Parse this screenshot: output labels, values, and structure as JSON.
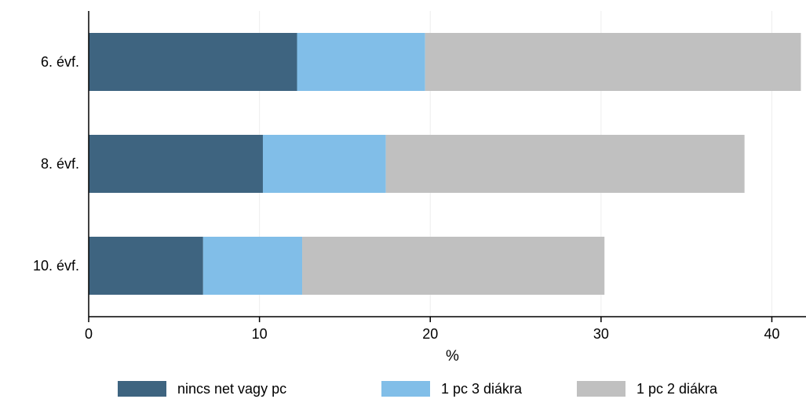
{
  "chart_data": {
    "type": "bar",
    "orientation": "horizontal",
    "stacked": true,
    "title": "",
    "xlabel": "%",
    "ylabel": "",
    "xlim": [
      0,
      42
    ],
    "xticks": [
      0,
      10,
      20,
      30,
      40
    ],
    "categories": [
      "6. évf.",
      "8. évf.",
      "10. évf."
    ],
    "series": [
      {
        "name": "nincs net vagy pc",
        "color": "#3e6480",
        "values": [
          12.2,
          10.2,
          6.7
        ]
      },
      {
        "name": "1 pc 3 diákra",
        "color": "#81bee8",
        "values": [
          7.5,
          7.2,
          5.8
        ]
      },
      {
        "name": "1 pc 2 diákra",
        "color": "#c0c0c0",
        "values": [
          22.0,
          21.0,
          17.7
        ]
      }
    ],
    "grid": true,
    "legend_position": "bottom"
  }
}
